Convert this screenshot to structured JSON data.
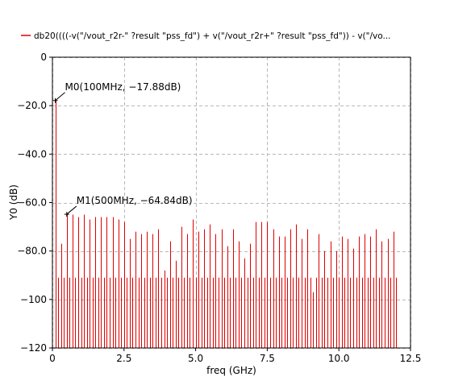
{
  "chart_data": {
    "type": "bar",
    "legend": {
      "label": "db20((((-v(\"/vout_r2r-\" ?result \"pss_fd\") + v(\"/vout_r2r+\" ?result \"pss_fd\")) - v(\"/vo...",
      "placement": "top-left"
    },
    "xlabel": "freq (GHz)",
    "ylabel": "Y0 (dB)",
    "xlim": [
      0,
      12.5
    ],
    "ylim": [
      -120,
      0
    ],
    "xticks": [
      0,
      2.5,
      5.0,
      7.5,
      10.0,
      12.5
    ],
    "xtick_labels": [
      "0",
      "2.5",
      "5.0",
      "7.5",
      "10.0",
      "12.5"
    ],
    "yticks": [
      0,
      -20,
      -40,
      -60,
      -80,
      -100,
      -120
    ],
    "ytick_labels": [
      "0",
      "−20.0",
      "−40.0",
      "−60.0",
      "−80.0",
      "−100",
      "−120"
    ],
    "grid": true,
    "series_color": "#e00000",
    "series": [
      {
        "name": "db20((((-v(\"/vout_r2r-\" ?result \"pss_fd\") + v(\"/vout_r2r+\" ?result \"pss_fd\")) - v(\"/vo...",
        "x": [
          0.1,
          0.2,
          0.3,
          0.4,
          0.5,
          0.6,
          0.7,
          0.8,
          0.9,
          1.0,
          1.1,
          1.2,
          1.3,
          1.4,
          1.5,
          1.6,
          1.7,
          1.8,
          1.9,
          2.0,
          2.1,
          2.2,
          2.3,
          2.4,
          2.5,
          2.6,
          2.7,
          2.8,
          2.9,
          3.0,
          3.1,
          3.2,
          3.3,
          3.4,
          3.5,
          3.6,
          3.7,
          3.8,
          3.9,
          4.0,
          4.1,
          4.2,
          4.3,
          4.4,
          4.5,
          4.6,
          4.7,
          4.8,
          4.9,
          5.0,
          5.1,
          5.2,
          5.3,
          5.4,
          5.5,
          5.6,
          5.7,
          5.8,
          5.9,
          6.0,
          6.1,
          6.2,
          6.3,
          6.4,
          6.5,
          6.6,
          6.7,
          6.8,
          6.9,
          7.0,
          7.1,
          7.2,
          7.3,
          7.4,
          7.5,
          7.6,
          7.7,
          7.8,
          7.9,
          8.0,
          8.1,
          8.2,
          8.3,
          8.4,
          8.5,
          8.6,
          8.7,
          8.8,
          8.9,
          9.0,
          9.1,
          9.2,
          9.3,
          9.4,
          9.5,
          9.6,
          9.7,
          9.8,
          9.9,
          10.0,
          10.1,
          10.2,
          10.3,
          10.4,
          10.5,
          10.6,
          10.7,
          10.8,
          10.9,
          11.0,
          11.1,
          11.2,
          11.3,
          11.4,
          11.5,
          11.6,
          11.7,
          11.8,
          11.9,
          12.0
        ],
        "values": [
          -17.88,
          -91,
          -77,
          -91,
          -64.84,
          -91,
          -65,
          -91,
          -66,
          -91,
          -65,
          -91,
          -67,
          -91,
          -66,
          -91,
          -66,
          -91,
          -66,
          -91,
          -66,
          -91,
          -67,
          -91,
          -68,
          -91,
          -75,
          -91,
          -72,
          -91,
          -73,
          -91,
          -72,
          -91,
          -73,
          -91,
          -71,
          -91,
          -88,
          -91,
          -76,
          -91,
          -84,
          -91,
          -70,
          -91,
          -73,
          -91,
          -67,
          -91,
          -72,
          -91,
          -71,
          -91,
          -69,
          -91,
          -73,
          -91,
          -71,
          -91,
          -78,
          -91,
          -71,
          -91,
          -76,
          -91,
          -83,
          -91,
          -77,
          -91,
          -68,
          -91,
          -68,
          -91,
          -68,
          -91,
          -71,
          -91,
          -74,
          -91,
          -74,
          -91,
          -71,
          -91,
          -69,
          -91,
          -75,
          -91,
          -71,
          -91,
          -97,
          -91,
          -73,
          -91,
          -80,
          -91,
          -76,
          -91,
          -80,
          -91,
          -74,
          -91,
          -75,
          -91,
          -79,
          -91,
          -74,
          -91,
          -73,
          -91,
          -74,
          -91,
          -71,
          -91,
          -76,
          -91,
          -75,
          -91,
          -72,
          -91
        ]
      }
    ],
    "markers": [
      {
        "label": "M0(100MHz, −17.88dB)",
        "x": 0.1,
        "y": -17.88
      },
      {
        "label": "M1(500MHz, −64.84dB)",
        "x": 0.5,
        "y": -64.84
      }
    ]
  }
}
